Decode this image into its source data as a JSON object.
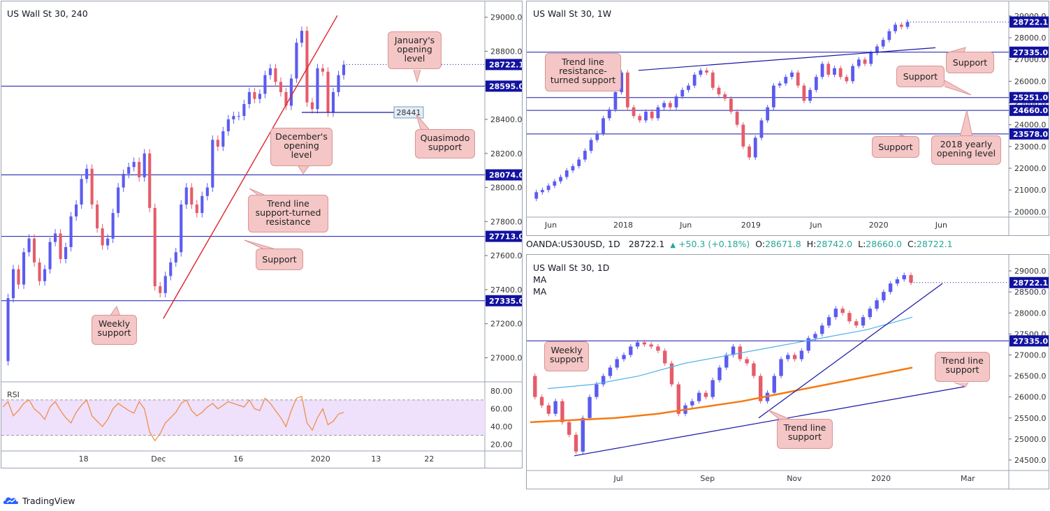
{
  "app": {
    "brand": "TradingView"
  },
  "ohlc_bar": {
    "symbol": "OANDA:US30USD, 1D",
    "last": "28722.1",
    "change": "+50.3 (+0.18%)",
    "o_label": "O:",
    "o": "28671.8",
    "h_label": "H:",
    "h": "28742.0",
    "l_label": "L:",
    "l": "28660.0",
    "c_label": "C:",
    "c": "28722.1"
  },
  "chart_data": [
    {
      "id": "h4",
      "type": "candlestick",
      "title": "US Wall St 30, 240",
      "ylim": [
        26920,
        29060
      ],
      "y_ticks": [
        "29000.0",
        "28800.0",
        "28600.0",
        "28400.0",
        "28200.0",
        "28000.0",
        "27800.0",
        "27600.0",
        "27400.0",
        "27200.0",
        "27000.0"
      ],
      "y_tick_values": [
        29000,
        28800,
        28600,
        28400,
        28200,
        28000,
        27800,
        27600,
        27400,
        27200,
        27000
      ],
      "x_ticks": [
        "18",
        "Dec",
        "16",
        "2020",
        "13",
        "22"
      ],
      "x_tick_positions": [
        0.17,
        0.325,
        0.49,
        0.66,
        0.775,
        0.885
      ],
      "levels": [
        {
          "value": 28595.0,
          "label": "28595.0",
          "color": "#1515a8"
        },
        {
          "value": 28074.0,
          "label": "28074.0",
          "color": "#1515a8"
        },
        {
          "value": 27713.0,
          "label": "27713.0",
          "color": "#1515a8"
        },
        {
          "value": 27335.0,
          "label": "27335.0",
          "color": "#1515a8"
        }
      ],
      "last_price": {
        "value": 28722.1,
        "label": "28722.1"
      },
      "qm_level": {
        "value": 28441,
        "label": "28441"
      },
      "trend_line": [
        [
          0.335,
          27230
        ],
        [
          0.695,
          29010
        ]
      ],
      "series": [
        26980,
        27350,
        27520,
        27430,
        27620,
        27700,
        27560,
        27450,
        27520,
        27680,
        27730,
        27580,
        27650,
        27830,
        27900,
        28050,
        28110,
        27900,
        27760,
        27660,
        27700,
        27850,
        28000,
        28080,
        28120,
        28150,
        28060,
        28200,
        27880,
        27420,
        27380,
        27480,
        27560,
        27620,
        27900,
        28000,
        27900,
        27850,
        27950,
        28000,
        28280,
        28240,
        28330,
        28400,
        28420,
        28420,
        28490,
        28560,
        28520,
        28550,
        28660,
        28700,
        28620,
        28560,
        28480,
        28640,
        28850,
        28920,
        28500,
        28460,
        28700,
        28680,
        28440,
        28560,
        28660,
        28720
      ],
      "rsi": {
        "label": "RSI",
        "ticks": [
          "80.00",
          "60.00",
          "40.00",
          "20.00"
        ],
        "tick_values": [
          80,
          60,
          40,
          20
        ],
        "band": [
          30,
          70
        ],
        "values": [
          62,
          68,
          52,
          58,
          66,
          70,
          60,
          55,
          48,
          62,
          68,
          58,
          50,
          44,
          56,
          64,
          70,
          52,
          46,
          40,
          48,
          60,
          66,
          62,
          58,
          55,
          68,
          60,
          34,
          24,
          32,
          44,
          50,
          56,
          66,
          70,
          58,
          52,
          56,
          62,
          66,
          60,
          64,
          68,
          66,
          64,
          62,
          70,
          60,
          58,
          72,
          66,
          58,
          50,
          40,
          58,
          72,
          74,
          44,
          36,
          50,
          60,
          42,
          46,
          54,
          56
        ]
      },
      "annotations": [
        {
          "id": "january-opening-callout",
          "text": [
            "January's",
            "opening",
            "level"
          ]
        },
        {
          "id": "quasimodo-callout",
          "text": [
            "Quasimodo",
            "support"
          ]
        },
        {
          "id": "december-opening-callout",
          "text": [
            "December's",
            "opening",
            "level"
          ]
        },
        {
          "id": "trendline-resistance-callout",
          "text": [
            "Trend line",
            "support-turned",
            "resistance"
          ]
        },
        {
          "id": "support-callout",
          "text": [
            "Support"
          ]
        },
        {
          "id": "weekly-support-callout",
          "text": [
            "Weekly",
            "support"
          ]
        }
      ]
    },
    {
      "id": "weekly",
      "type": "candlestick",
      "title": "US Wall St 30, 1W",
      "ylim": [
        19850,
        29350
      ],
      "y_ticks": [
        "29000.0",
        "28000.0",
        "27000.0",
        "26000.0",
        "25000.0",
        "24000.0",
        "23000.0",
        "22000.0",
        "21000.0",
        "20000.0"
      ],
      "y_tick_values": [
        29000,
        28000,
        27000,
        26000,
        25000,
        24000,
        23000,
        22000,
        21000,
        20000
      ],
      "x_ticks": [
        "Jun",
        "2018",
        "Jun",
        "2019",
        "Jun",
        "2020",
        "Jun"
      ],
      "x_tick_positions": [
        0.05,
        0.2,
        0.33,
        0.465,
        0.6,
        0.73,
        0.86
      ],
      "levels": [
        {
          "value": 27335.0,
          "label": "27335.0",
          "color": "#1515a8"
        },
        {
          "value": 25251.0,
          "label": "25251.0",
          "color": "#1515a8"
        },
        {
          "value": 24660.0,
          "label": "24660.0",
          "color": "#1515a8"
        },
        {
          "value": 23578.0,
          "label": "23578.0",
          "color": "#1515a8"
        }
      ],
      "last_price": {
        "value": 28722.1,
        "label": "28722.1"
      },
      "series": [
        20600,
        20900,
        21000,
        21200,
        21400,
        21600,
        21900,
        22100,
        22400,
        22800,
        23300,
        23600,
        24300,
        24700,
        25500,
        26400,
        24800,
        24400,
        24200,
        24600,
        24300,
        24800,
        25000,
        24800,
        25300,
        25600,
        25800,
        26300,
        26500,
        26400,
        25700,
        25400,
        25200,
        24600,
        24000,
        23000,
        22500,
        23400,
        24200,
        24800,
        25800,
        25900,
        26200,
        26400,
        25800,
        25100,
        25600,
        26200,
        26800,
        26300,
        26600,
        26200,
        26000,
        26700,
        27000,
        26800,
        27300,
        27600,
        27900,
        28300,
        28600,
        28500,
        28722
      ]
    },
    {
      "id": "daily",
      "type": "candlestick",
      "title": "US Wall St 30, 1D",
      "ma_labels": [
        "MA",
        "MA"
      ],
      "ylim": [
        24300,
        29250
      ],
      "y_ticks": [
        "29000.0",
        "28500.0",
        "28000.0",
        "27500.0",
        "27000.0",
        "26500.0",
        "26000.0",
        "25500.0",
        "25000.0",
        "24500.0"
      ],
      "y_tick_values": [
        29000,
        28500,
        28000,
        27500,
        27000,
        26500,
        26000,
        25500,
        25000,
        24500
      ],
      "x_ticks": [
        "Jul",
        "Sep",
        "Nov",
        "2020",
        "Mar"
      ],
      "x_tick_positions": [
        0.19,
        0.375,
        0.555,
        0.735,
        0.915
      ],
      "levels": [
        {
          "value": 27335.0,
          "label": "27335.0",
          "color": "#1515a8"
        }
      ],
      "last_price": {
        "value": 28722.1,
        "label": "28722.1"
      },
      "series": [
        26500,
        26000,
        25800,
        25600,
        25900,
        25400,
        25100,
        24700,
        25500,
        26000,
        26300,
        26500,
        26700,
        26900,
        27000,
        27200,
        27300,
        27250,
        27200,
        27100,
        26800,
        26300,
        25600,
        25800,
        25900,
        26100,
        26000,
        26400,
        26700,
        27000,
        27200,
        26900,
        26800,
        26500,
        25900,
        26100,
        26500,
        26900,
        27000,
        26900,
        27100,
        27400,
        27500,
        27700,
        27900,
        28100,
        28000,
        27800,
        27700,
        27900,
        28100,
        28300,
        28500,
        28700,
        28800,
        28900,
        28722
      ],
      "ma_blue": [
        26200,
        26300,
        26500,
        26800,
        27000,
        27200,
        27400,
        27600,
        27900
      ],
      "ma_orange": [
        25400,
        25450,
        25500,
        25600,
        25750,
        25900,
        26100,
        26300,
        26500,
        26700
      ],
      "annotations": [
        {
          "id": "daily-weekly-support-callout",
          "text": [
            "Weekly",
            "support"
          ]
        },
        {
          "id": "daily-trendline-support-callout-1",
          "text": [
            "Trend line",
            "support"
          ]
        },
        {
          "id": "daily-trendline-support-callout-2",
          "text": [
            "Trend line",
            "support"
          ]
        }
      ]
    }
  ],
  "weekly_annotations": [
    {
      "id": "trendline-resistance-turned-callout",
      "text": [
        "Trend line",
        "resistance-",
        "turned support"
      ]
    },
    {
      "id": "weekly-support-top-callout",
      "text": [
        "Support"
      ]
    },
    {
      "id": "weekly-support-mid-callout",
      "text": [
        "Support"
      ]
    },
    {
      "id": "weekly-support-bottom-callout",
      "text": [
        "Support"
      ]
    },
    {
      "id": "yearly-opening-callout",
      "text": [
        "2018 yearly",
        "opening level"
      ]
    }
  ],
  "colors": {
    "up": "#5b5bf0",
    "down": "#e55c6a",
    "level": "#1515a8",
    "trend_red": "#e0222a",
    "rsi_line": "#f0883e",
    "rsi_band": "#efe0fb",
    "callout_bg": "#f5c6c6",
    "ma_blue": "#4fb3ea",
    "ma_orange": "#f47a12"
  }
}
